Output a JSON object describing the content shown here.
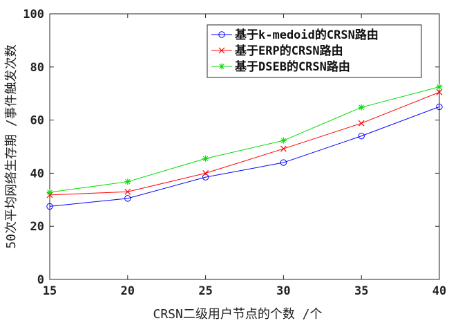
{
  "chart_data": {
    "type": "line",
    "xlabel": "CRSN二级用户节点的个数 /个",
    "ylabel": "50次平均网络生存期 /事件触发次数",
    "x": [
      15,
      20,
      25,
      30,
      35,
      40
    ],
    "xlim": [
      15,
      40
    ],
    "ylim": [
      0,
      100
    ],
    "xticks": [
      "15",
      "20",
      "25",
      "30",
      "35",
      "40"
    ],
    "yticks": [
      "0",
      "20",
      "40",
      "60",
      "80",
      "100"
    ],
    "grid": false,
    "legend_position": "top-right",
    "series": [
      {
        "name": "基于k-medoid的CRSN路由",
        "values": [
          27.5,
          30.5,
          38.5,
          44,
          54,
          65
        ],
        "color": "#0000ff",
        "marker": "circle"
      },
      {
        "name": "基于ERP的CRSN路由",
        "values": [
          31.8,
          33,
          40,
          49.2,
          58.8,
          70.5
        ],
        "color": "#ff0000",
        "marker": "x"
      },
      {
        "name": "基于DSEB的CRSN路由",
        "values": [
          32.8,
          36.8,
          45.5,
          52.3,
          64.8,
          72.5
        ],
        "color": "#00dd00",
        "marker": "star"
      }
    ]
  }
}
